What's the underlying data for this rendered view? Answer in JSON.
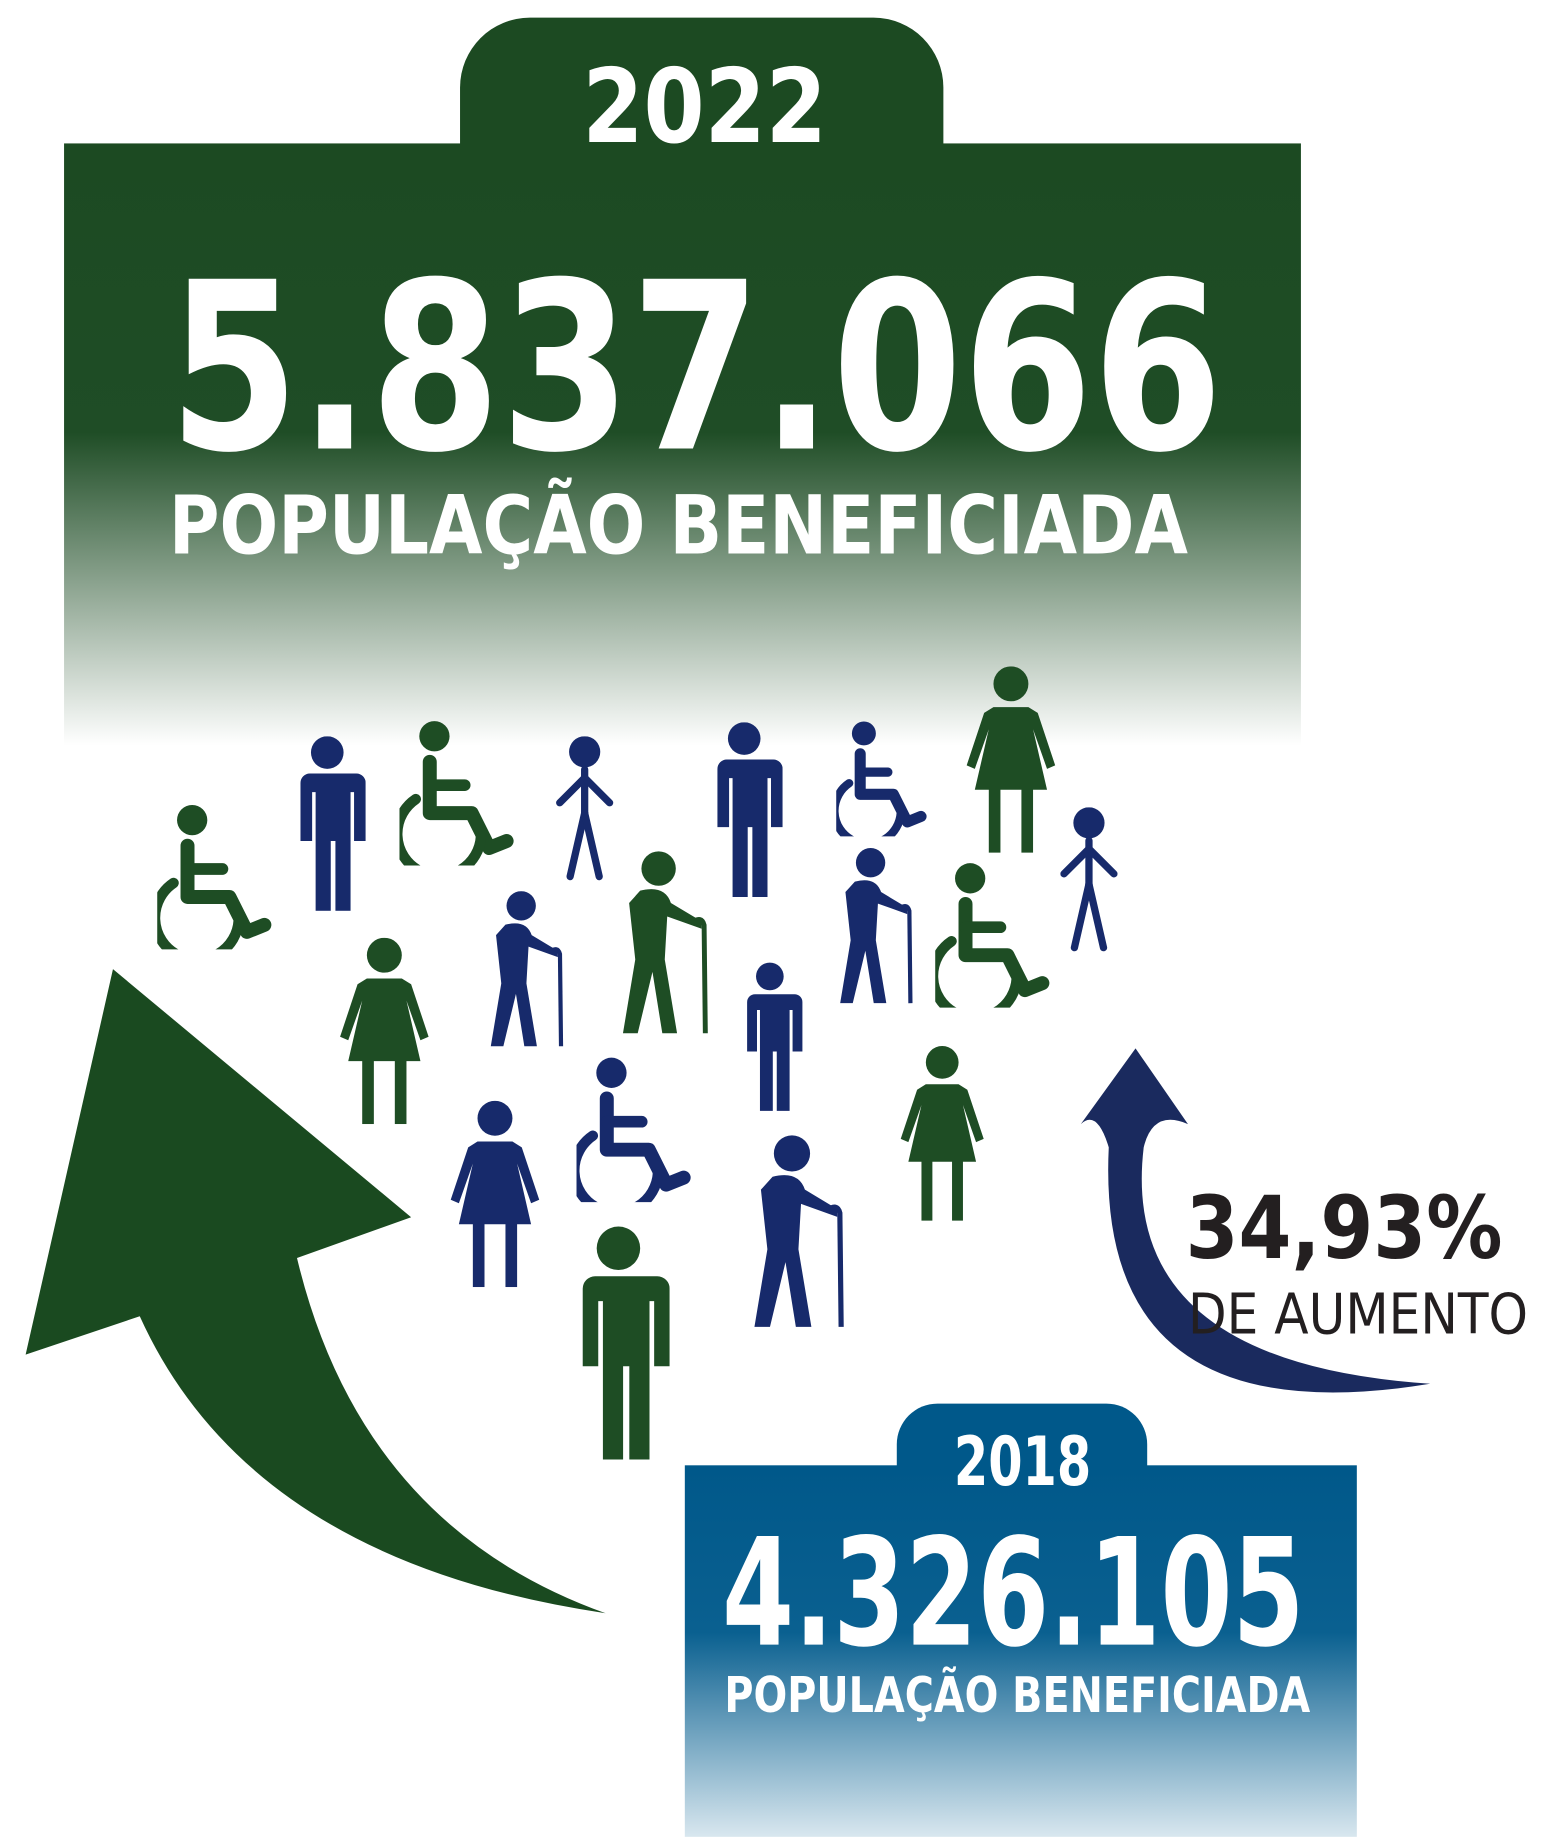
{
  "current": {
    "year": "2022",
    "value": "5.837.066",
    "label": "POPULAÇÃO BENEFICIADA"
  },
  "previous": {
    "year": "2018",
    "value": "4.326.105",
    "label": "POPULAÇÃO BENEFICIADA"
  },
  "increase": {
    "percent": "34,93%",
    "label": "DE AUMENTO"
  }
}
